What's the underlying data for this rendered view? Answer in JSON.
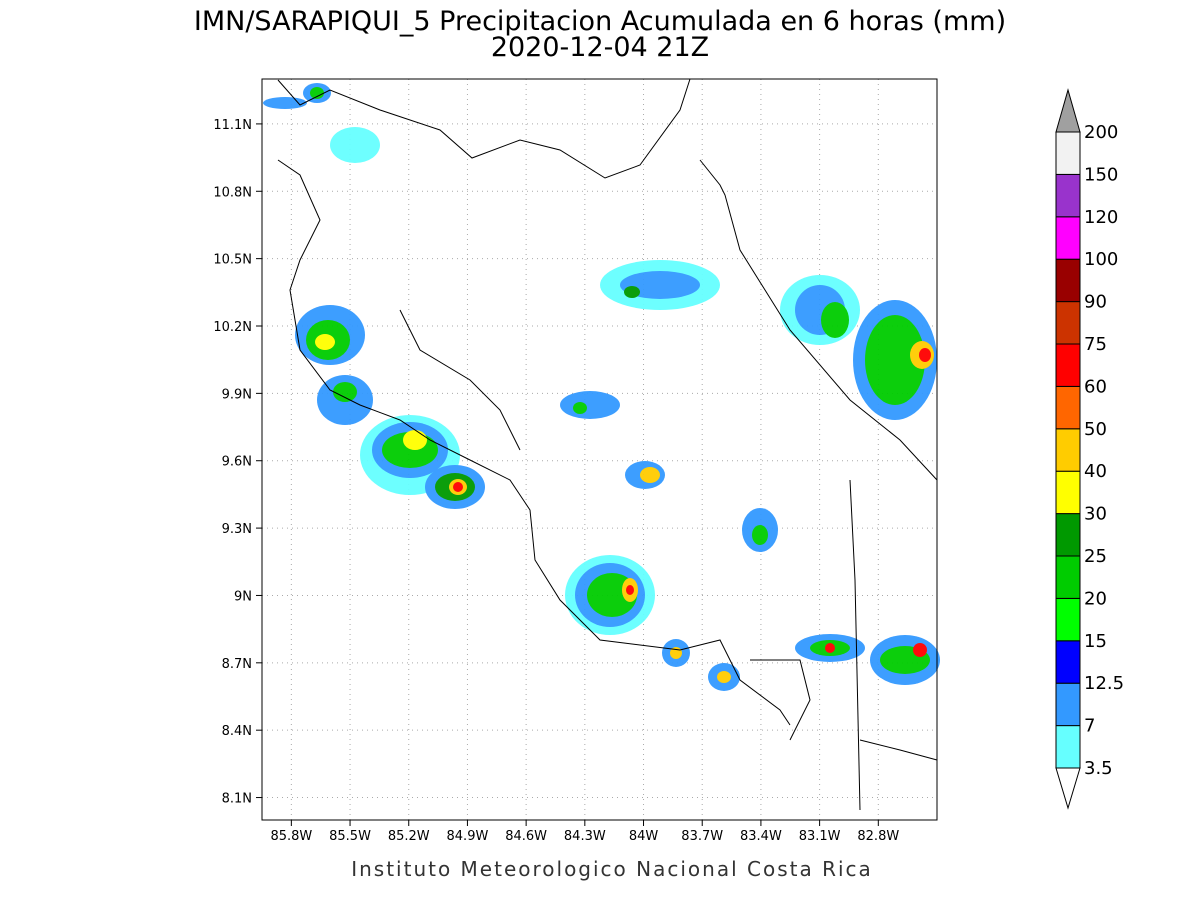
{
  "title": "IMN/SARAPIQUI_5 Precipitacion Acumulada en 6 horas (mm)",
  "subtitle": "2020-12-04 21Z",
  "map": {
    "xlim": [
      -85.95,
      -82.5
    ],
    "ylim": [
      8.0,
      11.3
    ],
    "lon_ticks": [
      {
        "value": -85.8,
        "label": "85.8W"
      },
      {
        "value": -85.5,
        "label": "85.5W"
      },
      {
        "value": -85.2,
        "label": "85.2W"
      },
      {
        "value": -84.9,
        "label": "84.9W"
      },
      {
        "value": -84.6,
        "label": "84.6W"
      },
      {
        "value": -84.3,
        "label": "84.3W"
      },
      {
        "value": -84.0,
        "label": "84W"
      },
      {
        "value": -83.7,
        "label": "83.7W"
      },
      {
        "value": -83.4,
        "label": "83.4W"
      },
      {
        "value": -83.1,
        "label": "83.1W"
      },
      {
        "value": -82.8,
        "label": "82.8W"
      }
    ],
    "lat_ticks": [
      {
        "value": 8.1,
        "label": "8.1N"
      },
      {
        "value": 8.4,
        "label": "8.4N"
      },
      {
        "value": 8.7,
        "label": "8.7N"
      },
      {
        "value": 9.0,
        "label": "9N"
      },
      {
        "value": 9.3,
        "label": "9.3N"
      },
      {
        "value": 9.6,
        "label": "9.6N"
      },
      {
        "value": 9.9,
        "label": "9.9N"
      },
      {
        "value": 10.2,
        "label": "10.2N"
      },
      {
        "value": 10.5,
        "label": "10.5N"
      },
      {
        "value": 10.8,
        "label": "10.8N"
      },
      {
        "value": 11.1,
        "label": "11.1N"
      }
    ]
  },
  "colorbar": {
    "levels": [
      3.5,
      7,
      12.5,
      15,
      20,
      25,
      30,
      40,
      50,
      60,
      75,
      90,
      100,
      120,
      150,
      200
    ],
    "colors": [
      "#66ffff",
      "#3399ff",
      "#0000ff",
      "#00ff00",
      "#00cc00",
      "#009900",
      "#ffff00",
      "#ffcc00",
      "#ff6600",
      "#ff0000",
      "#cc3300",
      "#990000",
      "#ff00ff",
      "#9933cc",
      "#f2f2f2"
    ],
    "under_color": "#ffffff",
    "over_color": "#a0a0a0"
  },
  "footer": "Instituto Meteorologico Nacional Costa Rica"
}
